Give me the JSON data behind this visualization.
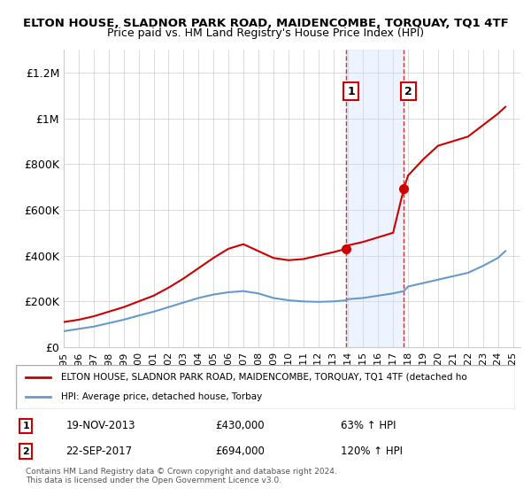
{
  "title": "ELTON HOUSE, SLADNOR PARK ROAD, MAIDENCOMBE, TORQUAY, TQ1 4TF",
  "subtitle": "Price paid vs. HM Land Registry's House Price Index (HPI)",
  "legend_label_red": "ELTON HOUSE, SLADNOR PARK ROAD, MAIDENCOMBE, TORQUAY, TQ1 4TF (detached ho",
  "legend_label_blue": "HPI: Average price, detached house, Torbay",
  "footnote": "Contains HM Land Registry data © Crown copyright and database right 2024.\nThis data is licensed under the Open Government Licence v3.0.",
  "sale1_date": 2013.88,
  "sale1_price": 430000,
  "sale1_label": "1",
  "sale1_text": "19-NOV-2013",
  "sale1_pct": "63% ↑ HPI",
  "sale2_date": 2017.72,
  "sale2_price": 694000,
  "sale2_label": "2",
  "sale2_text": "22-SEP-2017",
  "sale2_pct": "120% ↑ HPI",
  "xlim": [
    1995,
    2025.5
  ],
  "ylim": [
    0,
    1300000
  ],
  "yticks": [
    0,
    200000,
    400000,
    600000,
    800000,
    1000000,
    1200000
  ],
  "ytick_labels": [
    "£0",
    "£200K",
    "£400K",
    "£600K",
    "£800K",
    "£1M",
    "£1.2M"
  ],
  "xticks": [
    1995,
    1996,
    1997,
    1998,
    1999,
    2000,
    2001,
    2002,
    2003,
    2004,
    2005,
    2006,
    2007,
    2008,
    2009,
    2010,
    2011,
    2012,
    2013,
    2014,
    2015,
    2016,
    2017,
    2018,
    2019,
    2020,
    2021,
    2022,
    2023,
    2024,
    2025
  ],
  "red_color": "#cc0000",
  "blue_color": "#6699cc",
  "shade_color": "#cce0ff",
  "marker_box_color": "#cc0000",
  "background_color": "#ffffff",
  "grid_color": "#cccccc",
  "red_x": [
    1995,
    1996,
    1997,
    1998,
    1999,
    2000,
    2001,
    2002,
    2003,
    2004,
    2005,
    2006,
    2007,
    2008,
    2009,
    2010,
    2011,
    2012,
    2013,
    2013.88,
    2014,
    2015,
    2016,
    2017,
    2017.72,
    2018,
    2019,
    2020,
    2021,
    2022,
    2023,
    2024,
    2024.5
  ],
  "red_y": [
    110000,
    120000,
    135000,
    155000,
    175000,
    200000,
    225000,
    260000,
    300000,
    345000,
    390000,
    430000,
    450000,
    420000,
    390000,
    380000,
    385000,
    400000,
    415000,
    430000,
    445000,
    460000,
    480000,
    500000,
    694000,
    750000,
    820000,
    880000,
    900000,
    920000,
    970000,
    1020000,
    1050000
  ],
  "blue_x": [
    1995,
    1996,
    1997,
    1998,
    1999,
    2000,
    2001,
    2002,
    2003,
    2004,
    2005,
    2006,
    2007,
    2008,
    2009,
    2010,
    2011,
    2012,
    2013,
    2013.88,
    2014,
    2015,
    2016,
    2017,
    2017.72,
    2018,
    2019,
    2020,
    2021,
    2022,
    2023,
    2024,
    2024.5
  ],
  "blue_y": [
    70000,
    80000,
    90000,
    105000,
    120000,
    138000,
    155000,
    175000,
    195000,
    215000,
    230000,
    240000,
    245000,
    235000,
    215000,
    205000,
    200000,
    198000,
    200000,
    205000,
    210000,
    215000,
    225000,
    235000,
    245000,
    265000,
    280000,
    295000,
    310000,
    325000,
    355000,
    390000,
    420000
  ]
}
